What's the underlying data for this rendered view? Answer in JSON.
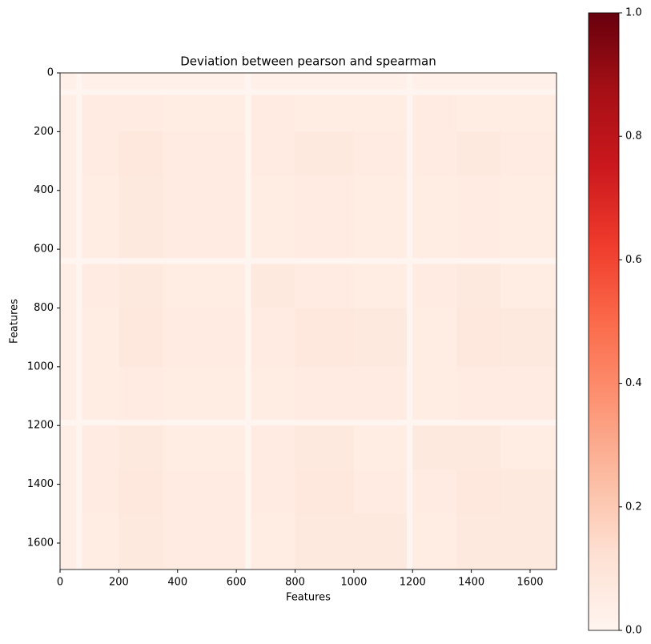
{
  "chart_data": {
    "type": "heatmap",
    "title": "Deviation between pearson and spearman",
    "xlabel": "Features",
    "ylabel": "Features",
    "xedges": [
      0,
      55,
      75,
      200,
      350,
      630,
      650,
      800,
      1000,
      1180,
      1200,
      1350,
      1500,
      1690
    ],
    "yedges": [
      0,
      55,
      75,
      200,
      350,
      630,
      650,
      800,
      1000,
      1180,
      1200,
      1350,
      1500,
      1690
    ],
    "z": [
      [
        0.03,
        0,
        0.03,
        0.03,
        0.03,
        0,
        0.03,
        0.03,
        0.03,
        0,
        0.03,
        0.03,
        0.03
      ],
      [
        0,
        0,
        0,
        0,
        0,
        0,
        0,
        0,
        0,
        0,
        0,
        0,
        0
      ],
      [
        0.04,
        0,
        0.06,
        0.06,
        0.05,
        0,
        0.06,
        0.05,
        0.05,
        0,
        0.06,
        0.05,
        0.05
      ],
      [
        0.04,
        0,
        0.06,
        0.08,
        0.06,
        0,
        0.06,
        0.07,
        0.06,
        0,
        0.06,
        0.07,
        0.06
      ],
      [
        0.04,
        0,
        0.05,
        0.07,
        0.06,
        0,
        0.05,
        0.06,
        0.05,
        0,
        0.05,
        0.06,
        0.05
      ],
      [
        0,
        0,
        0,
        0,
        0,
        0,
        0,
        0,
        0,
        0,
        0,
        0,
        0
      ],
      [
        0.04,
        0,
        0.06,
        0.07,
        0.05,
        0,
        0.07,
        0.06,
        0.05,
        0,
        0.06,
        0.07,
        0.05
      ],
      [
        0.04,
        0,
        0.05,
        0.08,
        0.06,
        0,
        0.06,
        0.08,
        0.07,
        0,
        0.05,
        0.08,
        0.07
      ],
      [
        0.04,
        0,
        0.05,
        0.06,
        0.05,
        0,
        0.05,
        0.06,
        0.06,
        0,
        0.05,
        0.06,
        0.06
      ],
      [
        0,
        0,
        0,
        0,
        0,
        0,
        0,
        0,
        0,
        0,
        0,
        0,
        0
      ],
      [
        0.04,
        0,
        0.06,
        0.07,
        0.05,
        0,
        0.06,
        0.07,
        0.05,
        0,
        0.07,
        0.07,
        0.05
      ],
      [
        0.04,
        0,
        0.06,
        0.08,
        0.06,
        0,
        0.06,
        0.08,
        0.06,
        0,
        0.06,
        0.08,
        0.07
      ],
      [
        0.04,
        0,
        0.05,
        0.07,
        0.06,
        0,
        0.05,
        0.07,
        0.07,
        0,
        0.05,
        0.07,
        0.07
      ]
    ],
    "xlim": [
      0,
      1690
    ],
    "ylim": [
      1690,
      0
    ],
    "xticks": [
      0,
      200,
      400,
      600,
      800,
      1000,
      1200,
      1400,
      1600
    ],
    "yticks": [
      0,
      200,
      400,
      600,
      800,
      1000,
      1200,
      1400,
      1600
    ],
    "clim": [
      0,
      1
    ],
    "cticks": [
      {
        "value": 0,
        "label": "0.0"
      },
      {
        "value": 0.2,
        "label": "0.2"
      },
      {
        "value": 0.4,
        "label": "0.4"
      },
      {
        "value": 0.6,
        "label": "0.6"
      },
      {
        "value": 0.8,
        "label": "0.8"
      },
      {
        "value": 1,
        "label": "1.0"
      }
    ],
    "colorscale": [
      "#fff5f0",
      "#fee0d2",
      "#fcbba1",
      "#fc9272",
      "#fb6a4a",
      "#ef3b2c",
      "#cb181d",
      "#a50f15",
      "#67000d"
    ]
  }
}
